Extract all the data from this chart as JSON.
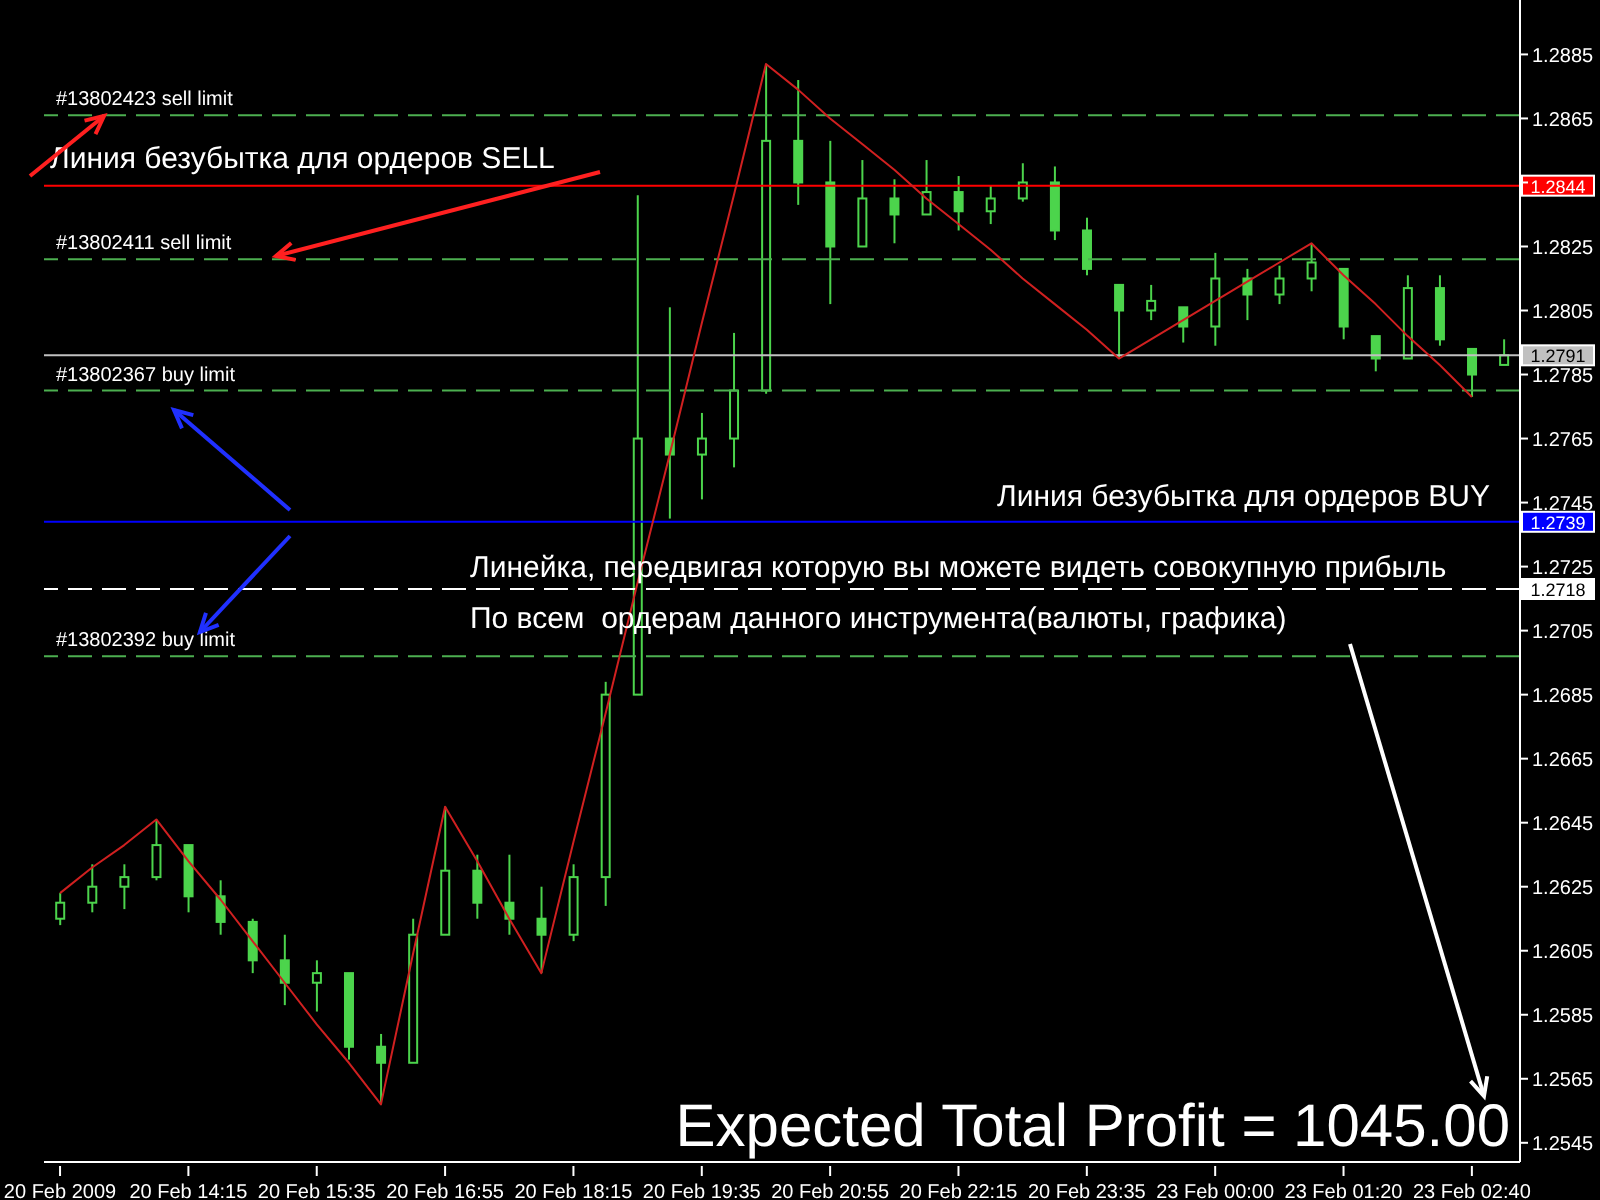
{
  "chart_data": {
    "type": "candlestick",
    "color": "#4cd44c",
    "categories": [
      "20 Feb 2009",
      null,
      null,
      null,
      "20 Feb 14:15",
      null,
      null,
      null,
      "20 Feb 15:35",
      null,
      null,
      null,
      "20 Feb 16:55",
      null,
      null,
      null,
      "20 Feb 18:15",
      null,
      null,
      null,
      "20 Feb 19:35",
      null,
      null,
      null,
      "20 Feb 20:55",
      null,
      null,
      null,
      "20 Feb 22:15",
      null,
      null,
      null,
      "20 Feb 23:35",
      null,
      null,
      null,
      "23 Feb 00:00",
      null,
      null,
      null,
      "23 Feb 01:20",
      null,
      null,
      null,
      "23 Feb 02:40",
      null
    ],
    "ohlc": [
      [
        1.2615,
        1.2623,
        1.2613,
        1.262
      ],
      [
        1.262,
        1.2632,
        1.2617,
        1.2625
      ],
      [
        1.2625,
        1.2632,
        1.2618,
        1.2628
      ],
      [
        1.2628,
        1.2646,
        1.2627,
        1.2638
      ],
      [
        1.2638,
        1.2638,
        1.2617,
        1.2622
      ],
      [
        1.2622,
        1.2627,
        1.261,
        1.2614
      ],
      [
        1.2614,
        1.2615,
        1.2598,
        1.2602
      ],
      [
        1.2602,
        1.261,
        1.2588,
        1.2595
      ],
      [
        1.2595,
        1.2602,
        1.2586,
        1.2598
      ],
      [
        1.2598,
        1.2598,
        1.2571,
        1.2575
      ],
      [
        1.2575,
        1.2579,
        1.2557,
        1.257
      ],
      [
        1.257,
        1.2615,
        1.257,
        1.261
      ],
      [
        1.261,
        1.265,
        1.261,
        1.263
      ],
      [
        1.263,
        1.2635,
        1.2615,
        1.262
      ],
      [
        1.262,
        1.2635,
        1.261,
        1.2615
      ],
      [
        1.2615,
        1.2625,
        1.2598,
        1.261
      ],
      [
        1.261,
        1.2632,
        1.2608,
        1.2628
      ],
      [
        1.2628,
        1.2689,
        1.2619,
        1.2685
      ],
      [
        1.2685,
        1.2841,
        1.2685,
        1.2765
      ],
      [
        1.2765,
        1.2806,
        1.274,
        1.276
      ],
      [
        1.276,
        1.2773,
        1.2746,
        1.2765
      ],
      [
        1.2765,
        1.2798,
        1.2756,
        1.278
      ],
      [
        1.278,
        1.2882,
        1.2779,
        1.2858
      ],
      [
        1.2858,
        1.2877,
        1.2838,
        1.2845
      ],
      [
        1.2845,
        1.2858,
        1.2807,
        1.2825
      ],
      [
        1.2825,
        1.2852,
        1.2825,
        1.284
      ],
      [
        1.284,
        1.2846,
        1.2826,
        1.2835
      ],
      [
        1.2835,
        1.2852,
        1.2835,
        1.2842
      ],
      [
        1.2842,
        1.2847,
        1.283,
        1.2836
      ],
      [
        1.2836,
        1.2844,
        1.2832,
        1.284
      ],
      [
        1.284,
        1.2851,
        1.2839,
        1.2845
      ],
      [
        1.2845,
        1.285,
        1.2827,
        1.283
      ],
      [
        1.283,
        1.2834,
        1.2816,
        1.2818
      ],
      [
        1.2813,
        1.2813,
        1.279,
        1.2805
      ],
      [
        1.2805,
        1.2813,
        1.2802,
        1.2808
      ],
      [
        1.2806,
        1.2806,
        1.2795,
        1.28
      ],
      [
        1.28,
        1.2823,
        1.2794,
        1.2815
      ],
      [
        1.2815,
        1.2818,
        1.2802,
        1.281
      ],
      [
        1.281,
        1.2819,
        1.2807,
        1.2815
      ],
      [
        1.2815,
        1.2826,
        1.2811,
        1.282
      ],
      [
        1.2818,
        1.2818,
        1.2796,
        1.28
      ],
      [
        1.2797,
        1.2797,
        1.2786,
        1.279
      ],
      [
        1.279,
        1.2816,
        1.279,
        1.2812
      ],
      [
        1.2812,
        1.2816,
        1.2794,
        1.2796
      ],
      [
        1.2793,
        1.2793,
        1.2778,
        1.2785
      ],
      [
        1.2788,
        1.2796,
        1.2788,
        1.2791
      ]
    ],
    "series": [
      {
        "type": "line",
        "color": "#d02020",
        "marker": "none",
        "values": [
          1.2623,
          1.2631,
          1.2638,
          1.2646,
          1.2633,
          1.2621,
          1.2608,
          1.2595,
          1.2582,
          1.257,
          1.2557,
          1.2604,
          1.265,
          1.2633,
          1.2615,
          1.2598,
          1.2639,
          1.2679,
          1.272,
          1.276,
          1.2801,
          1.2841,
          1.2882,
          1.2874,
          1.2865,
          1.2857,
          1.2849,
          1.284,
          1.2832,
          1.2824,
          1.2815,
          1.2807,
          1.2799,
          1.279,
          1.2796,
          1.2802,
          1.2808,
          1.2814,
          1.282,
          1.2826,
          1.2816,
          1.2807,
          1.2797,
          1.2788,
          1.2778,
          null
        ]
      }
    ],
    "ylim": [
      1.2539,
      1.2902
    ],
    "yticks": [
      1.2545,
      1.2565,
      1.2585,
      1.2605,
      1.2625,
      1.2645,
      1.2665,
      1.2685,
      1.2705,
      1.2725,
      1.2745,
      1.2765,
      1.2785,
      1.2805,
      1.2825,
      {
        "value": 1.2845,
        "label": null
      },
      1.2865,
      1.2885
    ],
    "ref_lines": [
      {
        "axis": "y",
        "value": 1.2866,
        "label": "#13802423 sell limit",
        "color": "#4caf50",
        "line_style": "dashed"
      },
      {
        "axis": "y",
        "value": 1.2844,
        "label": "1.2844",
        "color": "#ff0000",
        "line_style": "solid"
      },
      {
        "axis": "y",
        "value": 1.2821,
        "label": "#13802411 sell limit",
        "color": "#4caf50",
        "line_style": "dashed"
      },
      {
        "axis": "y",
        "value": 1.2791,
        "label": "1.2791",
        "color": "#c0c0c0",
        "line_style": "solid"
      },
      {
        "axis": "y",
        "value": 1.278,
        "label": "#13802367 buy limit",
        "color": "#4caf50",
        "line_style": "dashed"
      },
      {
        "axis": "y",
        "value": 1.2739,
        "label": "1.2739",
        "color": "#0000ff",
        "line_style": "solid"
      },
      {
        "axis": "y",
        "value": 1.2718,
        "label": "1.2718",
        "color": "#ffffff",
        "line_style": "dashed"
      },
      {
        "axis": "y",
        "value": 1.2697,
        "label": "#13802392 buy limit",
        "color": "#4caf50",
        "line_style": "dashed"
      }
    ],
    "annotations": [
      {
        "text": "Линия безубытка для ордеров SELL",
        "y": 1.2844
      },
      {
        "text": "Линия безубытка для ордеров BUY",
        "y": 1.2739
      },
      {
        "text": "Линейка, передвигая которую вы можете видеть совокупную прибыль",
        "y": 1.2718
      },
      "По всем  ордерам данного инструмента(валюты, графика)",
      "Expected Total Profit = 1045.00"
    ]
  }
}
